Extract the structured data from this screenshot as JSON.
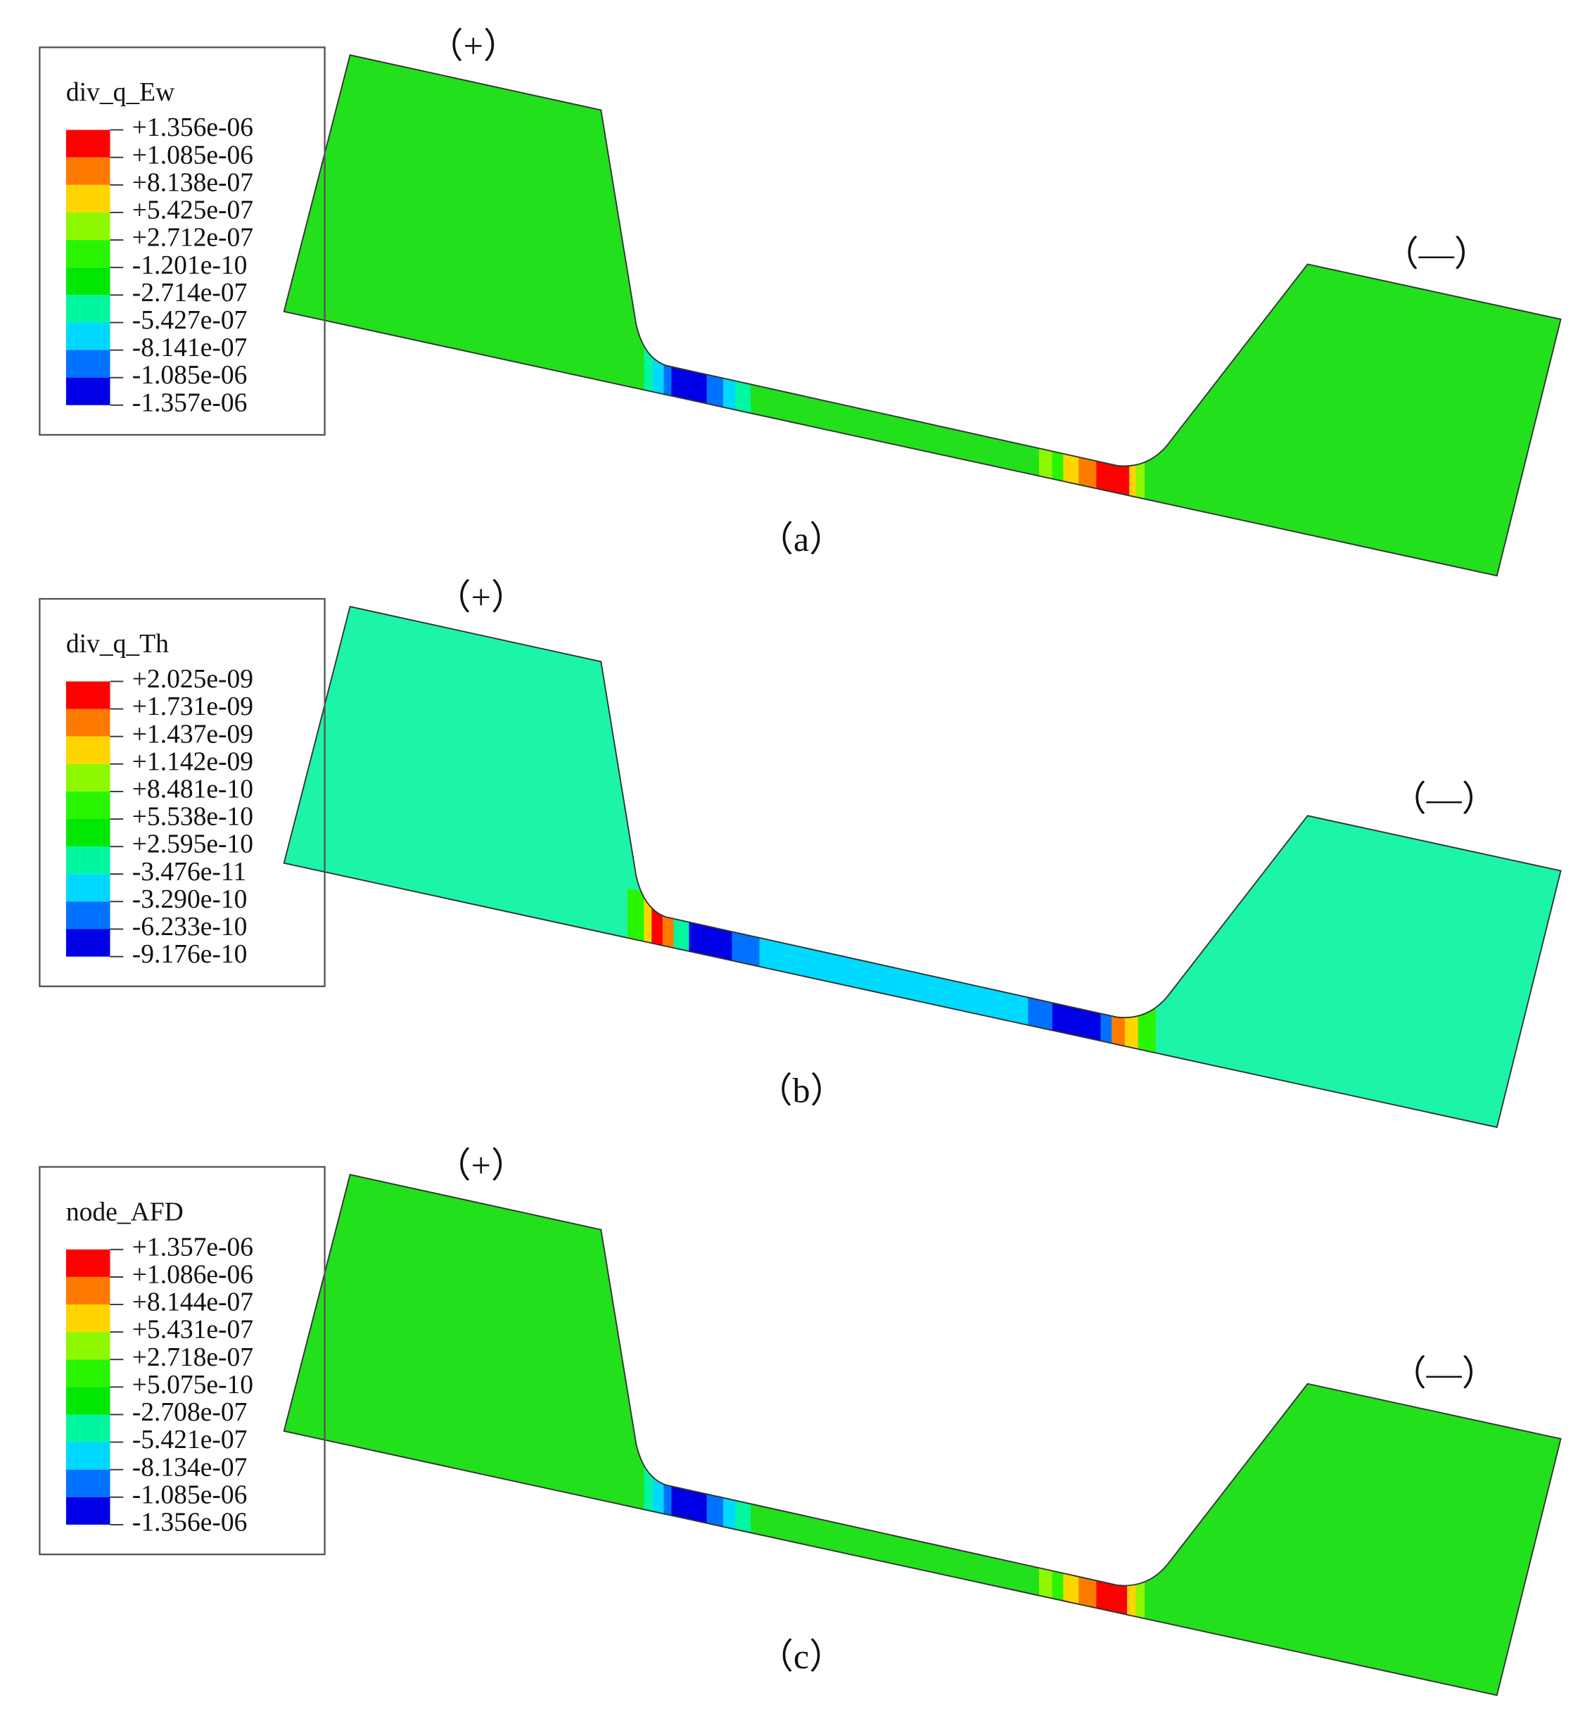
{
  "panels": [
    {
      "caption": "（a）",
      "plus": "（+）",
      "minus": "（—）",
      "legend": {
        "title": "div_q_Ew",
        "labels": [
          "+1.356e-06",
          "+1.085e-06",
          "+8.138e-07",
          "+5.425e-07",
          "+2.712e-07",
          "-1.201e-10",
          "-2.714e-07",
          "-5.427e-07",
          "-8.141e-07",
          "-1.085e-06",
          "-1.357e-06"
        ]
      }
    },
    {
      "caption": "（b）",
      "plus": "（+）",
      "minus": "（—）",
      "legend": {
        "title": "div_q_Th",
        "labels": [
          "+2.025e-09",
          "+1.731e-09",
          "+1.437e-09",
          "+1.142e-09",
          "+8.481e-10",
          "+5.538e-10",
          "+2.595e-10",
          "-3.476e-11",
          "-3.290e-10",
          "-6.233e-10",
          "-9.176e-10"
        ]
      }
    },
    {
      "caption": "（c）",
      "plus": "（+）",
      "minus": "（—）",
      "legend": {
        "title": "node_AFD",
        "labels": [
          "+1.357e-06",
          "+1.086e-06",
          "+8.144e-07",
          "+5.431e-07",
          "+2.718e-07",
          "+5.075e-10",
          "-2.708e-07",
          "-5.421e-07",
          "-8.134e-07",
          "-1.085e-06",
          "-1.356e-06"
        ]
      }
    }
  ]
}
